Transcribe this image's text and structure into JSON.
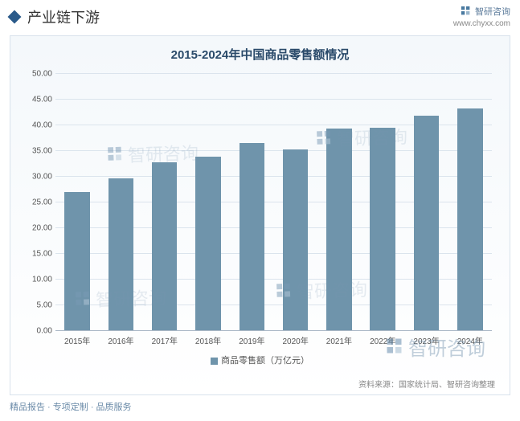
{
  "header": {
    "title": "产业链下游",
    "brand_name": "智研咨询",
    "brand_url": "www.chyxx.com"
  },
  "chart": {
    "type": "bar",
    "title": "2015-2024年中国商品零售额情况",
    "categories": [
      "2015年",
      "2016年",
      "2017年",
      "2018年",
      "2019年",
      "2020年",
      "2021年",
      "2022年",
      "2023年",
      "2024年"
    ],
    "values": [
      26.9,
      29.6,
      32.7,
      33.8,
      36.5,
      35.3,
      39.3,
      39.5,
      41.8,
      43.2
    ],
    "bar_color": "#6f94ab",
    "ylim": [
      0,
      50
    ],
    "ytick_step": 5,
    "y_tick_labels": [
      "0.00",
      "5.00",
      "10.00",
      "15.00",
      "20.00",
      "25.00",
      "30.00",
      "35.00",
      "40.00",
      "45.00",
      "50.00"
    ],
    "grid_color": "#dbe4ed",
    "background_gradient": [
      "#f4f8fb",
      "#ffffff"
    ],
    "axis_color": "#aab8c6",
    "label_color": "#555555",
    "title_color": "#2a4a6a",
    "title_fontsize": 15,
    "label_fontsize": 10,
    "bar_width_ratio": 0.58,
    "legend_label": "商品零售额（万亿元）",
    "source_text": "资料来源：国家统计局、智研咨询整理"
  },
  "footer": {
    "text": "精品报告 · 专项定制 · 品质服务"
  },
  "watermark": {
    "text": "智研咨询"
  }
}
